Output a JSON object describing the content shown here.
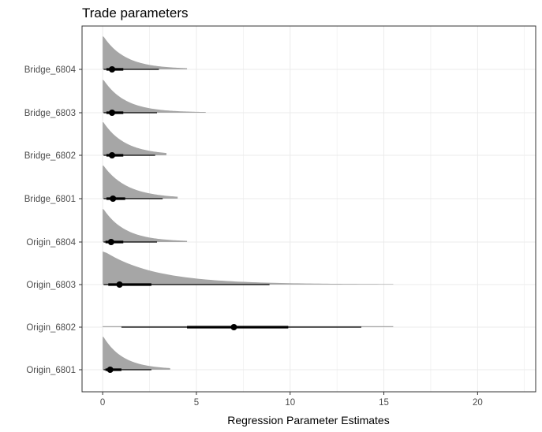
{
  "chart_data": {
    "type": "density-interval",
    "title": "Trade parameters",
    "xlabel": "Regression Parameter Estimates",
    "ylabel": "",
    "xlim": [
      -1.1,
      23.1
    ],
    "xticks": [
      0,
      5,
      10,
      15,
      20
    ],
    "grid": true,
    "categories": [
      "Bridge_6804",
      "Bridge_6803",
      "Bridge_6802",
      "Bridge_6801",
      "Origin_6804",
      "Origin_6803",
      "Origin_6802",
      "Origin_6801"
    ],
    "series": [
      {
        "category": "Bridge_6804",
        "median": 0.5,
        "inner": [
          0.2,
          1.1
        ],
        "outer": [
          0.05,
          3.0
        ],
        "range": [
          0.0,
          4.5
        ],
        "shape": "skewed"
      },
      {
        "category": "Bridge_6803",
        "median": 0.5,
        "inner": [
          0.2,
          1.1
        ],
        "outer": [
          0.05,
          2.9
        ],
        "range": [
          0.0,
          5.5
        ],
        "shape": "skewed"
      },
      {
        "category": "Bridge_6802",
        "median": 0.5,
        "inner": [
          0.2,
          1.1
        ],
        "outer": [
          0.05,
          2.8
        ],
        "range": [
          0.0,
          3.4
        ],
        "shape": "skewed"
      },
      {
        "category": "Bridge_6801",
        "median": 0.55,
        "inner": [
          0.2,
          1.2
        ],
        "outer": [
          0.05,
          3.2
        ],
        "range": [
          0.0,
          4.0
        ],
        "shape": "skewed"
      },
      {
        "category": "Origin_6804",
        "median": 0.45,
        "inner": [
          0.15,
          1.1
        ],
        "outer": [
          0.05,
          2.9
        ],
        "range": [
          0.0,
          4.5
        ],
        "shape": "skewed"
      },
      {
        "category": "Origin_6803",
        "median": 0.9,
        "inner": [
          0.3,
          2.6
        ],
        "outer": [
          0.05,
          8.9
        ],
        "range": [
          0.0,
          15.5
        ],
        "shape": "skewed"
      },
      {
        "category": "Origin_6802",
        "median": 7.0,
        "inner": [
          4.5,
          9.9
        ],
        "outer": [
          1.0,
          13.8
        ],
        "range": [
          0.0,
          15.5
        ],
        "shape": "flat"
      },
      {
        "category": "Origin_6801",
        "median": 0.4,
        "inner": [
          0.15,
          1.0
        ],
        "outer": [
          0.05,
          2.6
        ],
        "range": [
          0.0,
          3.6
        ],
        "shape": "skewed"
      }
    ],
    "colors": {
      "density": "#a6a6a6",
      "interval": "#000000",
      "grid": "#ebebeb",
      "panel_border": "#333333"
    }
  }
}
